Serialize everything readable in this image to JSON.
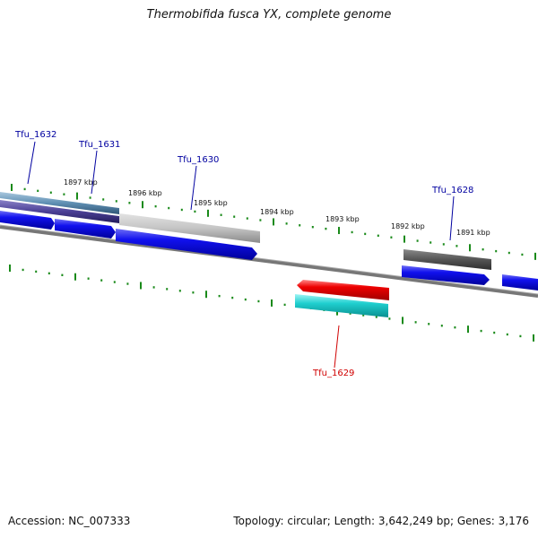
{
  "title": "Thermobifida fusca YX, complete genome",
  "footer": {
    "accession": "Accession: NC_007333",
    "summary": "Topology: circular; Length: 3,642,249 bp; Genes: 3,176"
  },
  "colors": {
    "forward_cds": "#0a0ae6",
    "reverse_cds": "#e60000",
    "gene_label_default": "#0000a0",
    "gene_label_highlight": "#d00000",
    "ticks": "#1a8a1a",
    "backbone": "#777777"
  },
  "ruler": {
    "labels": [
      "1897 kbp",
      "1896 kbp",
      "1895 kbp",
      "1894 kbp",
      "1893 kbp",
      "1892 kbp",
      "1891 kbp"
    ]
  },
  "genes": [
    {
      "label": "Tfu_1632"
    },
    {
      "label": "Tfu_1631"
    },
    {
      "label": "Tfu_1630"
    },
    {
      "label": "Tfu_1628"
    },
    {
      "label": "Tfu_1629"
    }
  ]
}
